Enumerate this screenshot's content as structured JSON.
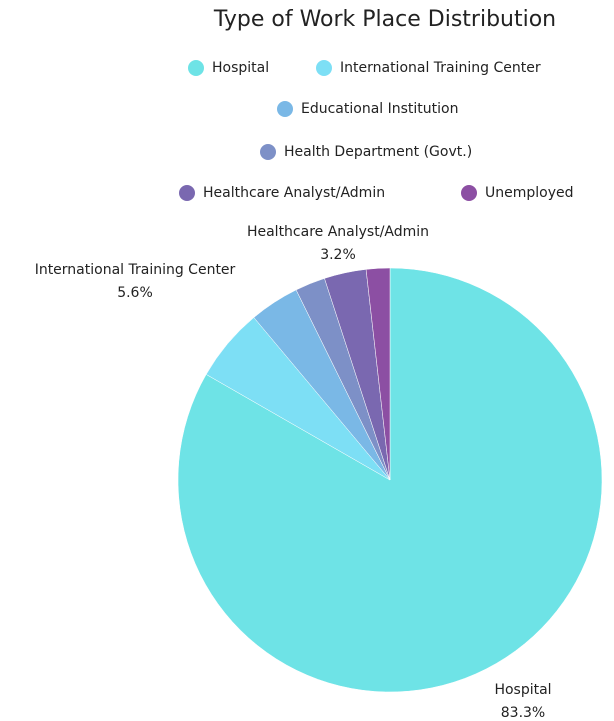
{
  "chart_data": {
    "type": "pie",
    "title": "Type of Work Place Distribution",
    "categories": [
      "Hospital",
      "International Training Center",
      "Educational Institution",
      "Health Department (Govt.)",
      "Healthcare Analyst/Admin",
      "Unemployed"
    ],
    "values": [
      83.3,
      5.6,
      3.8,
      2.3,
      3.2,
      1.8
    ],
    "value_labels": [
      "83.3%",
      "5.6%",
      null,
      null,
      "3.2%",
      null
    ],
    "colors": [
      "#6ee3e6",
      "#7ddff5",
      "#7ab8e6",
      "#7d90c7",
      "#7a68b0",
      "#8c4fa3"
    ],
    "legend": "top"
  }
}
